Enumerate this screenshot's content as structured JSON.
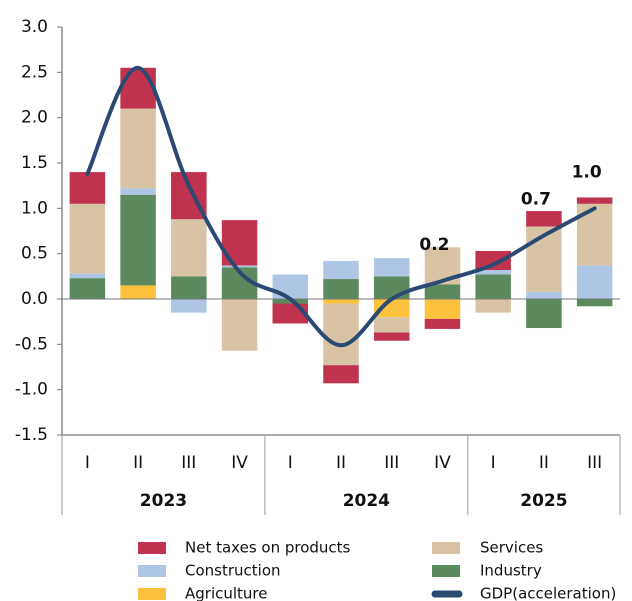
{
  "chart_data": {
    "type": "bar",
    "stacked": true,
    "categories": [
      "I",
      "II",
      "III",
      "IV",
      "I",
      "II",
      "III",
      "IV",
      "I",
      "II",
      "III"
    ],
    "years": [
      "2023",
      "2024",
      "2025"
    ],
    "ylim": [
      -1.5,
      3.0
    ],
    "yticks": [
      {
        "value": -1.5,
        "label": "-1.5"
      },
      {
        "value": -1.0,
        "label": "-1.0"
      },
      {
        "value": -0.5,
        "label": "-0.5"
      },
      {
        "value": 0,
        "label": "0.0"
      },
      0.5,
      {
        "value": 1.0,
        "label": "1.0"
      },
      1.5,
      {
        "value": 2.0,
        "label": "2.0"
      },
      2.5,
      {
        "value": 3.0,
        "label": "3.0"
      }
    ],
    "series": [
      {
        "name": "Agriculture",
        "color": "#fcc13d",
        "values": [
          0,
          0.15,
          0,
          0,
          0,
          -0.05,
          -0.2,
          -0.22,
          0,
          0,
          0
        ]
      },
      {
        "name": "Industry",
        "color": "#5a8a5e",
        "values": [
          0.23,
          1.0,
          0.25,
          0.35,
          -0.05,
          0.22,
          0.25,
          0.16,
          0.27,
          -0.32,
          -0.08
        ]
      },
      {
        "name": "Construction",
        "color": "#aec6e3",
        "values": [
          0.05,
          0.07,
          -0.15,
          0.02,
          0.27,
          0.2,
          0.2,
          0,
          0.05,
          0.08,
          0.37
        ]
      },
      {
        "name": "Services",
        "color": "#d9c3a5",
        "values": [
          0.77,
          0.88,
          0.63,
          -0.57,
          0,
          -0.68,
          -0.17,
          0.41,
          -0.15,
          0.72,
          0.68
        ]
      },
      {
        "name": "Net taxes on products",
        "color": "#c0334f",
        "values": [
          0.35,
          0.45,
          0.52,
          0.5,
          -0.22,
          -0.2,
          -0.09,
          -0.11,
          0.21,
          0.17,
          0.07
        ]
      },
      {
        "name": "GDP(acceleration)",
        "color": "#2a4a73",
        "type": "line",
        "values": [
          1.38,
          2.55,
          1.25,
          0.3,
          0.0,
          -0.51,
          0.0,
          0.2,
          0.38,
          0.7,
          1.0
        ],
        "value_labels": [
          null,
          null,
          null,
          null,
          null,
          null,
          null,
          "0.2",
          null,
          "0.7",
          "1.0"
        ]
      }
    ]
  }
}
